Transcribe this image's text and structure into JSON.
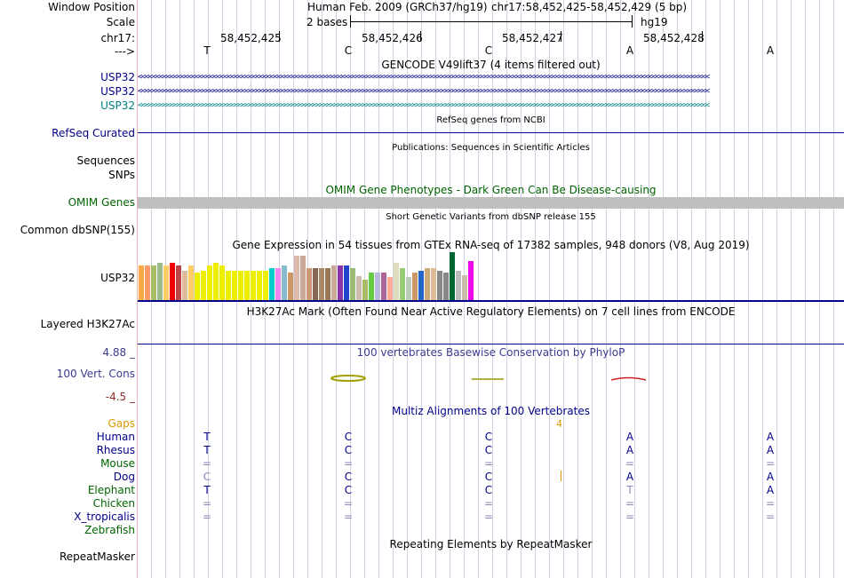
{
  "header": {
    "window_position_label": "Window Position",
    "scale_label": "Scale",
    "chrom_label": "chr17:",
    "strand_label": "--->",
    "assembly_title": "Human Feb. 2009 (GRCh37/hg19)",
    "position": "chr17:58,452,425-58,452,429 (5 bp)",
    "scale_text": "2 bases",
    "assembly_short": "hg19",
    "coords": [
      "58,452,425",
      "58,452,426",
      "58,452,427",
      "58,452,428"
    ],
    "sequence": [
      "T",
      "C",
      "C",
      "A",
      "A"
    ]
  },
  "gencode": {
    "title": "GENCODE V49lift37 (4 items filtered out)",
    "tracks": [
      "USP32",
      "USP32",
      "USP32"
    ],
    "arrows": "<<<<<<<<<<<<<<<<<<<<<<<<<<<<<<<<<<<<<<<<<<<<<<<<<<<<<<<<<<<<<<<<<<<<<<<<<<<<<<<<<<<<<<<<<<<<<<<<<<<<<<<<<<<<<<<<<<<<<<<<<<<<<<<<<<<<<<<<<<<<<<<<<<<<<<<<<<<<<<<<"
  },
  "refseq": {
    "title": "RefSeq genes from NCBI",
    "label": "RefSeq Curated"
  },
  "publications": {
    "title": "Publications: Sequences in Scientific Articles",
    "label1": "Sequences",
    "label2": "SNPs"
  },
  "omim": {
    "title": "OMIM Gene Phenotypes - Dark Green Can Be Disease-causing",
    "label": "OMIM Genes"
  },
  "dbsnp": {
    "title": "Short Genetic Variants from dbSNP release 155",
    "label": "Common dbSNP(155)"
  },
  "gtex": {
    "title": "Gene Expression in 54 tissues from GTEx RNA-seq of 17382 samples, 948 donors (V8, Aug 2019)",
    "label": "USP32",
    "values": [
      0.72,
      0.72,
      0.72,
      0.78,
      0.72,
      0.78,
      0.72,
      0.62,
      0.72,
      0.58,
      0.62,
      0.72,
      0.78,
      0.72,
      0.62,
      0.62,
      0.62,
      0.62,
      0.62,
      0.62,
      0.62,
      0.66,
      0.66,
      0.72,
      0.58,
      0.92,
      0.92,
      0.66,
      0.66,
      0.66,
      0.66,
      0.72,
      0.72,
      0.72,
      0.66,
      0.5,
      0.42,
      0.58,
      0.58,
      0.58,
      0.48,
      0.78,
      0.66,
      0.48,
      0.58,
      0.62,
      0.66,
      0.66,
      0.62,
      0.58,
      1.0,
      0.62,
      0.52,
      0.82
    ],
    "colors": [
      "#ffaa44",
      "#ff9966",
      "#aabb66",
      "#99bb88",
      "#ffcc66",
      "#ee0000",
      "#bb4444",
      "#ddbb99",
      "#ffcc66",
      "#eeee00",
      "#eeee00",
      "#eeee00",
      "#eeee00",
      "#eeee00",
      "#eeee00",
      "#eeee00",
      "#eeee00",
      "#eeee00",
      "#eeee00",
      "#eeee00",
      "#eeee00",
      "#00cccc",
      "#ee88ee",
      "#88bbcc",
      "#cc9966",
      "#ddbbaa",
      "#ccaa99",
      "#cc9977",
      "#886655",
      "#aa8866",
      "#997755",
      "#ccaa99",
      "#8833aa",
      "#2244cc",
      "#99bb77",
      "#ccbbaa",
      "#aabb66",
      "#66cc44",
      "#bbbbdd",
      "#aa6699",
      "#ffaa99",
      "#ddddbb",
      "#99cc77",
      "#bbccbb",
      "#cc9966",
      "#2266cc",
      "#ccaa77",
      "#ddbb99",
      "#888888",
      "#888888",
      "#006633",
      "#bbbbbb",
      "#ccbbaa",
      "#ee00ee"
    ]
  },
  "h3k27ac": {
    "title": "H3K27Ac Mark (Often Found Near Active Regulatory Elements) on 7 cell lines from ENCODE",
    "label": "Layered H3K27Ac"
  },
  "phylop": {
    "title": "100 vertebrates Basewise Conservation by PhyloP",
    "label": "100 Vert. Cons",
    "max": "4.88 _",
    "min": "-4.5 _"
  },
  "multiz": {
    "title": "Multiz Alignments of 100 Vertebrates",
    "gaps_label": "Gaps",
    "gap_count": "4",
    "species": [
      {
        "name": "Human",
        "bases": [
          "T",
          "C",
          "C",
          "A",
          "A"
        ]
      },
      {
        "name": "Rhesus",
        "bases": [
          "T",
          "C",
          "C",
          "A",
          "A"
        ]
      },
      {
        "name": "Mouse",
        "bases": [
          "=",
          "=",
          "=",
          "=",
          "="
        ]
      },
      {
        "name": "Dog",
        "bases": [
          "C",
          "C",
          "C",
          "A",
          "A"
        ]
      },
      {
        "name": "Elephant",
        "bases": [
          "T",
          "C",
          "C",
          "T",
          "A"
        ]
      },
      {
        "name": "Chicken",
        "bases": [
          "=",
          "=",
          "=",
          "=",
          "="
        ]
      },
      {
        "name": "X_tropicalis",
        "bases": [
          "=",
          "=",
          "=",
          "=",
          "="
        ]
      },
      {
        "name": "Zebrafish",
        "bases": [
          "",
          "",
          "",
          "",
          ""
        ]
      }
    ]
  },
  "repeatmasker": {
    "title": "Repeating Elements by RepeatMasker",
    "label": "RepeatMasker"
  },
  "colors": {
    "navy": "#00008b",
    "teal": "#008080",
    "omim_green": "#006400",
    "omim_bar": "#bfbfbf",
    "phylop_pos": "#3b3b8f",
    "phylop_neg": "#8b2a2a",
    "gaps": "#d99a00",
    "species_green": "#006400",
    "conservation": "#808000"
  }
}
